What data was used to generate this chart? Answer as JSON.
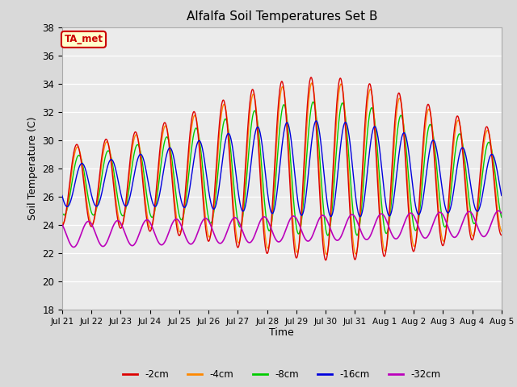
{
  "title": "Alfalfa Soil Temperatures Set B",
  "xlabel": "Time",
  "ylabel": "Soil Temperature (C)",
  "ylim": [
    18,
    38
  ],
  "colors": {
    "-2cm": "#dd0000",
    "-4cm": "#ff8800",
    "-8cm": "#00cc00",
    "-16cm": "#0000dd",
    "-32cm": "#bb00bb"
  },
  "annotation_text": "TA_met",
  "annotation_bg": "#ffffcc",
  "annotation_border": "#cc0000",
  "x_tick_labels": [
    "Jul 21",
    "Jul 22",
    "Jul 23",
    "Jul 24",
    "Jul 25",
    "Jul 26",
    "Jul 27",
    "Jul 28",
    "Jul 29",
    "Jul 30",
    "Jul 31",
    "Aug 1",
    "Aug 2",
    "Aug 3",
    "Aug 4",
    "Aug 5"
  ],
  "background_color": "#d9d9d9",
  "plot_bg_color": "#ebebeb",
  "grid_color": "#ffffff",
  "n_days": 15
}
